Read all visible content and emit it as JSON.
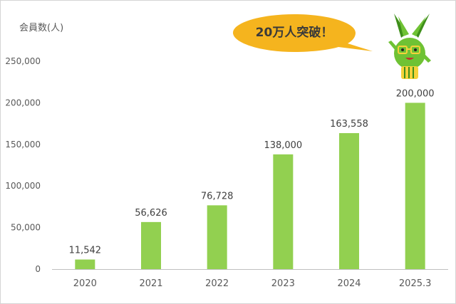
{
  "unit_label": "会員数(人)",
  "callout": {
    "text": "20万人突破！",
    "color": "#f5b41e"
  },
  "mascot": {
    "icon": "green-rabbit-mascot-icon",
    "body_color": "#6fc234",
    "dark_color": "#3e8f1a",
    "accent_color": "#f5d23a"
  },
  "chart_data": {
    "type": "bar",
    "categories": [
      "2020",
      "2021",
      "2022",
      "2023",
      "2024",
      "2025.3"
    ],
    "values": [
      11542,
      56626,
      76728,
      138000,
      163558,
      200000
    ],
    "data_labels": [
      "11,542",
      "56,626",
      "76,728",
      "138,000",
      "163,558",
      "200,000"
    ],
    "ylabel": "会員数(人)",
    "xlabel": "",
    "ylim": [
      0,
      250000
    ],
    "yticks": [
      0,
      50000,
      100000,
      150000,
      200000,
      250000
    ],
    "ytick_labels": [
      "0",
      "50,000",
      "100,000",
      "150,000",
      "200,000",
      "250,000"
    ],
    "grid": false,
    "bar_color": "#92d050",
    "axis_color": "#bfbfbf",
    "text_color": "#595959"
  }
}
